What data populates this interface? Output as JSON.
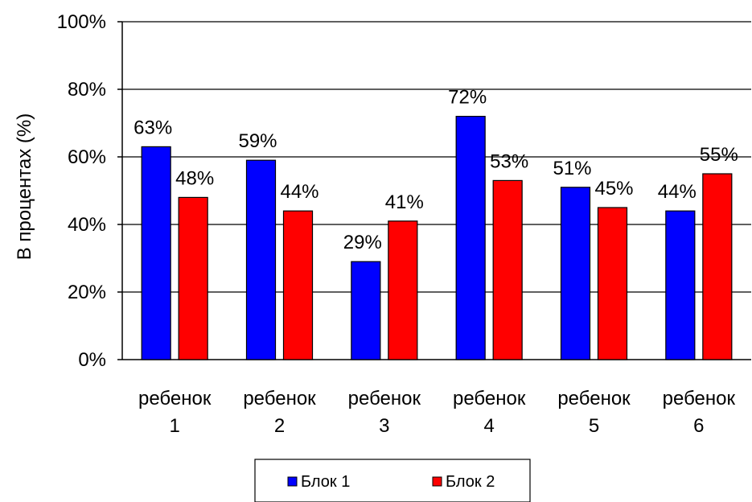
{
  "chart_data": {
    "type": "bar",
    "title": "",
    "xlabel": "",
    "ylabel": "В процентах (%)",
    "ylim": [
      0,
      100
    ],
    "yticks": [
      "0%",
      "20%",
      "40%",
      "60%",
      "80%",
      "100%"
    ],
    "grid": true,
    "legend_position": "bottom",
    "categories": [
      [
        "ребенок",
        "1"
      ],
      [
        "ребенок",
        "2"
      ],
      [
        "ребенок",
        "3"
      ],
      [
        "ребенок",
        "4"
      ],
      [
        "ребенок",
        "5"
      ],
      [
        "ребенок",
        "6"
      ]
    ],
    "series": [
      {
        "name": "Блок 1",
        "color": "#0000ff",
        "values": [
          63,
          59,
          29,
          72,
          51,
          44
        ],
        "labels": [
          "63%",
          "59%",
          "29%",
          "72%",
          "51%",
          "44%"
        ]
      },
      {
        "name": "Блок 2",
        "color": "#ff0000",
        "values": [
          48,
          44,
          41,
          53,
          45,
          55
        ],
        "labels": [
          "48%",
          "44%",
          "41%",
          "53%",
          "45%",
          "55%"
        ]
      }
    ]
  }
}
